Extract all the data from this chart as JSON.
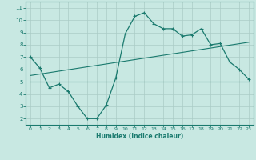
{
  "xlabel": "Humidex (Indice chaleur)",
  "x_values": [
    0,
    1,
    2,
    3,
    4,
    5,
    6,
    7,
    8,
    9,
    10,
    11,
    12,
    13,
    14,
    15,
    16,
    17,
    18,
    19,
    20,
    21,
    22,
    23
  ],
  "line1_y": [
    7.0,
    6.1,
    4.5,
    4.8,
    4.2,
    3.0,
    2.0,
    2.0,
    3.1,
    5.3,
    8.9,
    10.3,
    10.6,
    9.7,
    9.3,
    9.3,
    8.7,
    8.8,
    9.3,
    8.0,
    8.1,
    6.6,
    6.0,
    5.2
  ],
  "line2_x": [
    0,
    23
  ],
  "line2_y": [
    5.0,
    5.0
  ],
  "line3_x": [
    0,
    23
  ],
  "line3_y": [
    5.5,
    8.2
  ],
  "color": "#1a7a6e",
  "bg_color": "#c8e8e2",
  "grid_color": "#aaccc6",
  "ylim": [
    1.5,
    11.5
  ],
  "xlim": [
    -0.5,
    23.5
  ],
  "yticks": [
    2,
    3,
    4,
    5,
    6,
    7,
    8,
    9,
    10,
    11
  ],
  "xticks": [
    0,
    1,
    2,
    3,
    4,
    5,
    6,
    7,
    8,
    9,
    10,
    11,
    12,
    13,
    14,
    15,
    16,
    17,
    18,
    19,
    20,
    21,
    22,
    23
  ]
}
